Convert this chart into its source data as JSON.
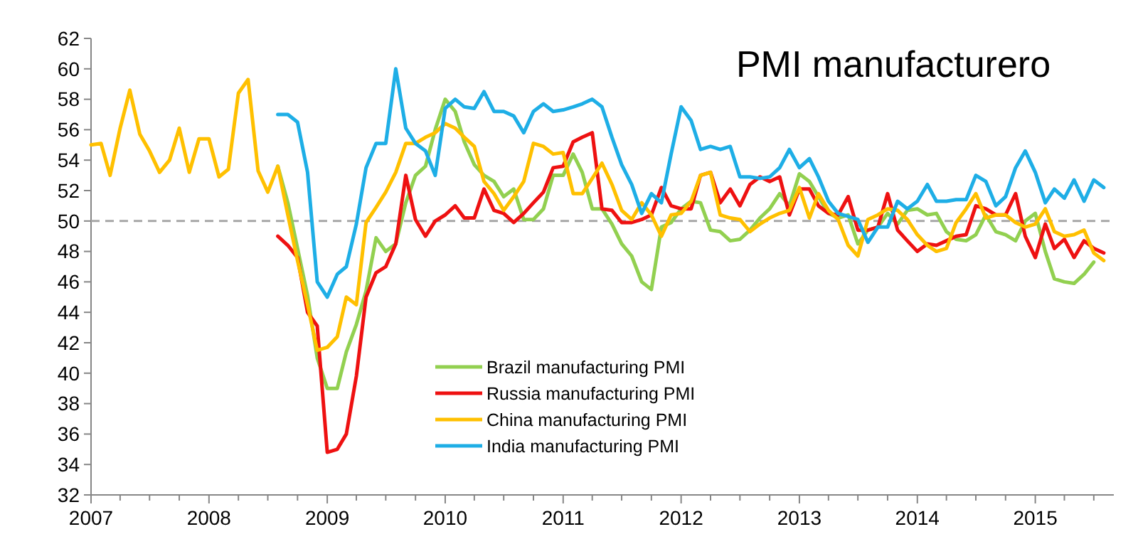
{
  "chart_data": {
    "type": "line",
    "title": "PMI manufacturero",
    "x": [
      "2007-01",
      "2007-02",
      "2007-03",
      "2007-04",
      "2007-05",
      "2007-06",
      "2007-07",
      "2007-08",
      "2007-09",
      "2007-10",
      "2007-11",
      "2007-12",
      "2008-01",
      "2008-02",
      "2008-03",
      "2008-04",
      "2008-05",
      "2008-06",
      "2008-07",
      "2008-08",
      "2008-09",
      "2008-10",
      "2008-11",
      "2008-12",
      "2009-01",
      "2009-02",
      "2009-03",
      "2009-04",
      "2009-05",
      "2009-06",
      "2009-07",
      "2009-08",
      "2009-09",
      "2009-10",
      "2009-11",
      "2009-12",
      "2010-01",
      "2010-02",
      "2010-03",
      "2010-04",
      "2010-05",
      "2010-06",
      "2010-07",
      "2010-08",
      "2010-09",
      "2010-10",
      "2010-11",
      "2010-12",
      "2011-01",
      "2011-02",
      "2011-03",
      "2011-04",
      "2011-05",
      "2011-06",
      "2011-07",
      "2011-08",
      "2011-09",
      "2011-10",
      "2011-11",
      "2011-12",
      "2012-01",
      "2012-02",
      "2012-03",
      "2012-04",
      "2012-05",
      "2012-06",
      "2012-07",
      "2012-08",
      "2012-09",
      "2012-10",
      "2012-11",
      "2012-12",
      "2013-01",
      "2013-02",
      "2013-03",
      "2013-04",
      "2013-05",
      "2013-06",
      "2013-07",
      "2013-08",
      "2013-09",
      "2013-10",
      "2013-11",
      "2013-12",
      "2014-01",
      "2014-02",
      "2014-03",
      "2014-04",
      "2014-05",
      "2014-06",
      "2014-07",
      "2014-08",
      "2014-09",
      "2014-10",
      "2014-11",
      "2014-12",
      "2015-01",
      "2015-02",
      "2015-03",
      "2015-04",
      "2015-05",
      "2015-06",
      "2015-07",
      "2015-08"
    ],
    "series": [
      {
        "name": "Brazil manufacturing PMI",
        "color": "#92d050",
        "values": [
          null,
          null,
          null,
          null,
          null,
          null,
          null,
          null,
          null,
          null,
          null,
          null,
          null,
          null,
          null,
          null,
          null,
          null,
          null,
          53.6,
          51.2,
          48.2,
          45.1,
          41.0,
          39.0,
          39.0,
          41.4,
          43.2,
          45.4,
          48.9,
          48.0,
          48.5,
          51.2,
          53.0,
          53.6,
          56.0,
          58.0,
          57.2,
          55.2,
          53.7,
          53.0,
          52.6,
          51.6,
          52.1,
          50.1,
          50.1,
          50.8,
          53.0,
          53.0,
          54.4,
          53.2,
          50.8,
          50.8,
          49.8,
          48.5,
          47.7,
          46.0,
          45.5,
          49.6,
          49.9,
          50.8,
          51.3,
          51.2,
          49.4,
          49.3,
          48.7,
          48.8,
          49.4,
          50.2,
          50.8,
          51.8,
          51.0,
          53.1,
          52.6,
          51.6,
          50.5,
          50.2,
          50.4,
          48.5,
          49.4,
          49.6,
          50.5,
          49.8,
          50.7,
          50.8,
          50.4,
          50.5,
          49.3,
          48.8,
          48.7,
          49.1,
          50.4,
          49.3,
          49.1,
          48.7,
          50.0,
          50.5,
          48.0,
          46.2,
          46.0,
          45.9,
          46.5,
          47.3,
          null
        ]
      },
      {
        "name": "Russia manufacturing PMI",
        "color": "#ee1111",
        "values": [
          null,
          null,
          null,
          null,
          null,
          null,
          null,
          null,
          null,
          null,
          null,
          null,
          null,
          null,
          null,
          null,
          null,
          null,
          null,
          49.0,
          48.4,
          47.6,
          44.0,
          43.1,
          34.8,
          35.0,
          36.0,
          39.8,
          45.0,
          46.6,
          47.0,
          48.5,
          53.0,
          50.1,
          49.0,
          50.0,
          50.4,
          51.0,
          50.2,
          50.2,
          52.1,
          50.7,
          50.5,
          49.9,
          50.5,
          51.2,
          51.9,
          53.5,
          53.6,
          55.2,
          55.5,
          55.8,
          50.8,
          50.7,
          49.9,
          49.9,
          50.1,
          50.4,
          52.2,
          51.0,
          50.8,
          50.8,
          53.0,
          53.2,
          51.2,
          52.1,
          51.0,
          52.4,
          52.9,
          52.6,
          52.9,
          50.4,
          52.1,
          52.1,
          51.0,
          50.5,
          50.4,
          51.6,
          49.4,
          49.4,
          49.6,
          51.8,
          49.4,
          48.7,
          48.0,
          48.5,
          48.4,
          48.7,
          49.0,
          49.1,
          51.0,
          50.8,
          50.4,
          50.4,
          51.8,
          49.0,
          47.6,
          49.8,
          48.2,
          48.8,
          47.6,
          48.7,
          48.2,
          47.9
        ]
      },
      {
        "name": "China manufacturing PMI",
        "color": "#ffc000",
        "values": [
          55.0,
          55.1,
          53.0,
          56.1,
          58.6,
          55.7,
          54.6,
          53.2,
          54.0,
          56.1,
          53.2,
          55.4,
          55.4,
          52.9,
          53.4,
          58.4,
          59.3,
          53.3,
          51.9,
          53.6,
          50.4,
          47.4,
          44.5,
          41.5,
          41.7,
          42.4,
          45.0,
          44.5,
          49.9,
          50.9,
          51.9,
          53.2,
          55.1,
          55.1,
          55.5,
          55.8,
          56.4,
          56.1,
          55.5,
          54.9,
          52.6,
          51.8,
          50.7,
          51.6,
          52.6,
          55.1,
          54.9,
          54.4,
          54.5,
          51.8,
          51.8,
          52.8,
          53.8,
          52.4,
          50.7,
          50.1,
          51.2,
          50.4,
          49.0,
          50.4,
          50.5,
          51.3,
          53.0,
          53.2,
          50.4,
          50.2,
          50.1,
          49.3,
          49.8,
          50.2,
          50.5,
          50.7,
          52.2,
          50.2,
          51.8,
          50.7,
          50.1,
          48.4,
          47.7,
          50.1,
          50.4,
          50.8,
          50.7,
          50.1,
          49.1,
          48.4,
          48.0,
          48.2,
          49.9,
          50.8,
          51.8,
          50.2,
          50.4,
          50.4,
          49.9,
          49.6,
          49.8,
          50.8,
          49.3,
          49.0,
          49.1,
          49.4,
          47.9,
          47.4
        ]
      },
      {
        "name": "India manufacturing PMI",
        "color": "#1eaee6",
        "values": [
          null,
          null,
          null,
          null,
          null,
          null,
          null,
          null,
          null,
          null,
          null,
          null,
          null,
          null,
          null,
          null,
          null,
          null,
          null,
          57.0,
          57.0,
          56.5,
          53.2,
          46.0,
          45.0,
          46.5,
          47.0,
          49.8,
          53.5,
          55.1,
          55.1,
          60.0,
          56.1,
          55.1,
          54.6,
          53.0,
          57.4,
          58.0,
          57.5,
          57.4,
          58.5,
          57.2,
          57.2,
          56.9,
          55.8,
          57.2,
          57.7,
          57.2,
          57.3,
          57.5,
          57.7,
          58.0,
          57.5,
          55.5,
          53.7,
          52.4,
          50.5,
          51.8,
          51.2,
          54.4,
          57.5,
          56.6,
          54.7,
          54.9,
          54.7,
          54.9,
          52.9,
          52.9,
          52.8,
          52.9,
          53.5,
          54.7,
          53.5,
          54.1,
          52.9,
          51.3,
          50.5,
          50.3,
          50.1,
          48.6,
          49.6,
          49.6,
          51.3,
          50.8,
          51.3,
          52.4,
          51.3,
          51.3,
          51.4,
          51.4,
          53.0,
          52.6,
          51.0,
          51.6,
          53.5,
          54.6,
          53.2,
          51.2,
          52.1,
          51.5,
          52.7,
          51.3,
          52.7,
          52.2
        ]
      }
    ],
    "xlim": [
      "2007-01",
      "2015-09"
    ],
    "xticks": [
      "2007",
      {
        "value": "2007-04",
        "label": null
      },
      {
        "value": "2007-07",
        "label": null
      },
      {
        "value": "2007-10",
        "label": null
      },
      "2008",
      {
        "value": "2008-04",
        "label": null
      },
      {
        "value": "2008-07",
        "label": null
      },
      {
        "value": "2008-10",
        "label": null
      },
      "2009",
      {
        "value": "2009-04",
        "label": null
      },
      {
        "value": "2009-07",
        "label": null
      },
      {
        "value": "2009-10",
        "label": null
      },
      "2010",
      {
        "value": "2010-04",
        "label": null
      },
      {
        "value": "2010-07",
        "label": null
      },
      {
        "value": "2010-10",
        "label": null
      },
      "2011",
      {
        "value": "2011-04",
        "label": null
      },
      {
        "value": "2011-07",
        "label": null
      },
      {
        "value": "2011-10",
        "label": null
      },
      "2012",
      {
        "value": "2012-04",
        "label": null
      },
      {
        "value": "2012-07",
        "label": null
      },
      {
        "value": "2012-10",
        "label": null
      },
      "2013",
      {
        "value": "2013-04",
        "label": null
      },
      {
        "value": "2013-07",
        "label": null
      },
      {
        "value": "2013-10",
        "label": null
      },
      "2014",
      {
        "value": "2014-04",
        "label": null
      },
      {
        "value": "2014-07",
        "label": null
      },
      {
        "value": "2014-10",
        "label": null
      },
      "2015",
      {
        "value": "2015-04",
        "label": null
      },
      {
        "value": "2015-07",
        "label": null
      }
    ],
    "ylim": [
      32,
      62
    ],
    "yticks": [
      32,
      34,
      36,
      38,
      40,
      42,
      44,
      46,
      48,
      50,
      52,
      54,
      56,
      58,
      60,
      62
    ],
    "ref_lines": [
      {
        "axis": "y",
        "value": 50,
        "color": "#a6a6a6",
        "line_style": "dashed"
      }
    ],
    "grid": false,
    "legend": "bottom",
    "line_style": "solid",
    "marker": "none"
  }
}
